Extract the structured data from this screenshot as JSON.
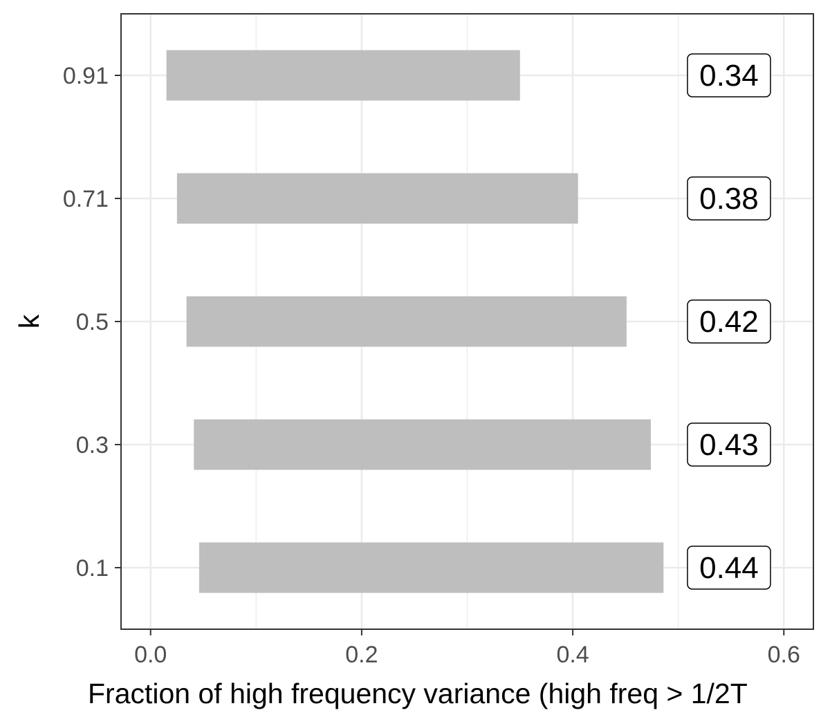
{
  "chart_data": {
    "type": "bar",
    "orientation": "horizontal",
    "categories": [
      "0.91",
      "0.71",
      "0.5",
      "0.3",
      "0.1"
    ],
    "ranges": [
      [
        0.015,
        0.35
      ],
      [
        0.025,
        0.405
      ],
      [
        0.034,
        0.451
      ],
      [
        0.041,
        0.474
      ],
      [
        0.046,
        0.486
      ]
    ],
    "data_labels": [
      "0.34",
      "0.38",
      "0.42",
      "0.43",
      "0.44"
    ],
    "xlabel": "Fraction of high frequency variance (high freq > 1/2T",
    "ylabel": "k",
    "xlim": [
      -0.028,
      0.628
    ],
    "xticks": [
      0.0,
      0.2,
      0.4,
      0.6
    ],
    "xtick_labels": [
      "0.0",
      "0.2",
      "0.4",
      "0.6"
    ],
    "label_x": 0.548,
    "grid": true,
    "legend": "none",
    "colors": {
      "bar": "#bebebe",
      "grid": "#ebebeb",
      "panel_border": "#333333",
      "tick_text": "#4d4d4d",
      "label_box_border": "#000000"
    }
  }
}
